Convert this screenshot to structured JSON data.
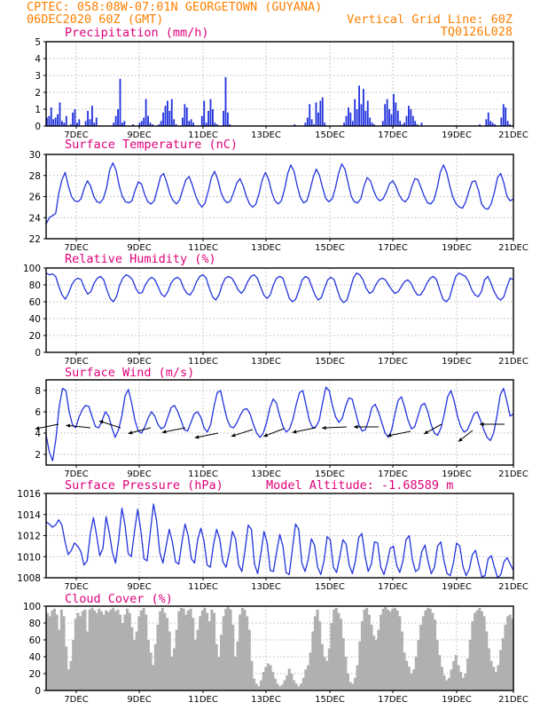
{
  "header": {
    "line1": "CPTEC:   058:08W-07:01N   GEORGETOWN (GUYANA)",
    "line2_left": "06DEC2020 60Z (GMT)",
    "line2_right": "Vertical Grid Line: 60Z",
    "line3_right": "TQ0126L028"
  },
  "colors": {
    "header": "#ff7f00",
    "title": "#e0007a",
    "series": "#2233dd",
    "cloud_fill": "#b0b0b0",
    "grid": "#b8b8b8"
  },
  "x_axis": {
    "tick_labels": [
      "7DEC",
      "9DEC",
      "11DEC",
      "13DEC",
      "15DEC",
      "17DEC",
      "19DEC",
      "21DEC"
    ]
  },
  "chart_data": [
    {
      "id": "precip",
      "type": "bar",
      "title": "Precipitation (mm/h)",
      "ylim": [
        0,
        5
      ],
      "yticks": [
        0,
        1,
        2,
        3,
        4,
        5
      ],
      "grid": true,
      "values": [
        0.5,
        0.6,
        1.1,
        0.4,
        0.5,
        0.7,
        1.4,
        0.3,
        0.2,
        0.6,
        0,
        0.1,
        0.8,
        1.0,
        0.2,
        0.4,
        0,
        0,
        0.3,
        0.9,
        0.4,
        1.2,
        0.2,
        0.5,
        0,
        0,
        0,
        0,
        0,
        0,
        0,
        0.2,
        0.6,
        1.0,
        2.8,
        0.2,
        0.3,
        0,
        0,
        0,
        0.1,
        0,
        0,
        0.2,
        0.3,
        0.5,
        1.6,
        0.6,
        0.2,
        0.1,
        0,
        0,
        0.1,
        0.3,
        0.8,
        1.2,
        1.5,
        0.9,
        1.6,
        0.4,
        0.1,
        0,
        0,
        0.5,
        1.3,
        1.1,
        0.3,
        0.4,
        0.2,
        0,
        0,
        0,
        0.6,
        1.5,
        0.2,
        0.9,
        1.6,
        1.0,
        0.2,
        0.1,
        0,
        0,
        0.9,
        2.9,
        0.8,
        0.1,
        0,
        0,
        0,
        0,
        0,
        0,
        0,
        0,
        0,
        0,
        0,
        0,
        0,
        0,
        0,
        0,
        0,
        0,
        0,
        0,
        0,
        0,
        0,
        0,
        0,
        0,
        0,
        0,
        0,
        0.1,
        0,
        0,
        0,
        0,
        0.2,
        0.5,
        1.3,
        0.4,
        0.1,
        1.4,
        0.8,
        1.5,
        1.7,
        0.2,
        0,
        0,
        0,
        0,
        0,
        0,
        0,
        0,
        0.2,
        0.6,
        1.1,
        0.8,
        0.3,
        1.6,
        1.0,
        2.4,
        1.3,
        2.2,
        0.9,
        1.5,
        0.5,
        0.2,
        0.1,
        0,
        0,
        0,
        0.3,
        1.3,
        1.6,
        1.0,
        0.7,
        1.9,
        1.4,
        0.9,
        0.3,
        0.1,
        0.2,
        0.6,
        1.2,
        1.0,
        0.6,
        0.3,
        0.1,
        0,
        0.2,
        0,
        0,
        0,
        0,
        0,
        0,
        0,
        0,
        0,
        0,
        0,
        0,
        0,
        0,
        0,
        0,
        0,
        0,
        0,
        0,
        0,
        0,
        0,
        0,
        0,
        0,
        0.1,
        0,
        0,
        0.4,
        0.8,
        0.3,
        0.2,
        0.1,
        0,
        0,
        0.5,
        1.3,
        1.1,
        0.3,
        0.1,
        0
      ]
    },
    {
      "id": "temp",
      "type": "line",
      "title": "Surface Temperature (nC)",
      "ylim": [
        22,
        30
      ],
      "yticks": [
        22,
        24,
        26,
        28,
        30
      ],
      "grid": true,
      "values": [
        23.4,
        24.0,
        24.2,
        24.4,
        26.3,
        27.6,
        28.3,
        27.0,
        26.0,
        25.6,
        25.5,
        25.8,
        26.8,
        27.5,
        27.0,
        26.0,
        25.5,
        25.4,
        25.8,
        26.8,
        28.5,
        29.2,
        28.5,
        27.0,
        26.0,
        25.5,
        25.4,
        25.6,
        26.6,
        27.4,
        27.2,
        26.2,
        25.5,
        25.3,
        25.6,
        26.7,
        27.9,
        28.2,
        27.3,
        26.2,
        25.6,
        25.3,
        25.7,
        26.7,
        27.6,
        27.9,
        27.1,
        26.1,
        25.4,
        25.0,
        25.4,
        26.5,
        27.8,
        28.4,
        27.6,
        26.4,
        25.7,
        25.4,
        25.6,
        26.4,
        27.3,
        27.7,
        27.0,
        26.0,
        25.3,
        25.0,
        25.3,
        26.3,
        27.6,
        28.3,
        27.6,
        26.4,
        25.6,
        25.3,
        25.6,
        26.7,
        28.2,
        29.0,
        28.4,
        27.0,
        25.9,
        25.4,
        25.6,
        26.6,
        27.8,
        28.6,
        28.0,
        26.8,
        25.8,
        25.5,
        25.8,
        26.8,
        28.2,
        29.1,
        28.6,
        27.3,
        26.0,
        25.5,
        25.4,
        25.8,
        27.0,
        27.8,
        27.5,
        26.6,
        25.9,
        25.6,
        25.8,
        26.4,
        27.2,
        27.5,
        27.0,
        26.2,
        25.7,
        25.5,
        25.9,
        26.9,
        27.7,
        27.6,
        26.8,
        26.0,
        25.4,
        25.3,
        25.7,
        26.8,
        28.3,
        29.0,
        28.3,
        27.0,
        25.9,
        25.3,
        25.0,
        24.9,
        25.5,
        26.5,
        27.4,
        27.5,
        26.6,
        25.3,
        24.9,
        24.8,
        25.3,
        26.4,
        27.8,
        28.2,
        27.3,
        26.0,
        25.6,
        25.8
      ]
    },
    {
      "id": "rh",
      "type": "line",
      "title": "Relative Humidity (%)",
      "ylim": [
        0,
        100
      ],
      "yticks": [
        0,
        20,
        40,
        60,
        80,
        100
      ],
      "grid": true,
      "values": [
        94,
        92,
        93,
        90,
        78,
        68,
        63,
        70,
        80,
        86,
        88,
        86,
        76,
        69,
        72,
        82,
        88,
        90,
        86,
        74,
        64,
        60,
        66,
        80,
        88,
        92,
        90,
        86,
        76,
        70,
        71,
        80,
        86,
        89,
        86,
        78,
        69,
        66,
        72,
        82,
        87,
        89,
        86,
        76,
        70,
        68,
        74,
        84,
        90,
        92,
        88,
        76,
        66,
        62,
        68,
        80,
        88,
        90,
        88,
        82,
        74,
        70,
        75,
        84,
        90,
        92,
        88,
        78,
        68,
        64,
        68,
        80,
        88,
        90,
        88,
        76,
        64,
        60,
        63,
        74,
        86,
        90,
        88,
        78,
        68,
        62,
        65,
        76,
        86,
        89,
        86,
        74,
        63,
        59,
        62,
        75,
        88,
        94,
        92,
        86,
        76,
        70,
        72,
        80,
        86,
        88,
        86,
        80,
        74,
        70,
        72,
        78,
        84,
        86,
        82,
        74,
        68,
        68,
        74,
        82,
        88,
        90,
        86,
        74,
        63,
        60,
        64,
        78,
        90,
        94,
        92,
        90,
        84,
        74,
        68,
        66,
        72,
        86,
        90,
        82,
        72,
        65,
        62,
        66,
        78,
        88,
        86
      ]
    },
    {
      "id": "wind",
      "type": "line",
      "title": "Surface Wind (m/s)",
      "ylim": [
        1,
        9
      ],
      "yticks": [
        2,
        4,
        6,
        8
      ],
      "grid": true,
      "values": [
        3.8,
        2.2,
        1.4,
        3.5,
        6.5,
        8.2,
        8.0,
        6.0,
        4.8,
        4.5,
        5.5,
        6.2,
        6.6,
        6.5,
        5.5,
        4.6,
        4.5,
        5.2,
        6.0,
        5.6,
        4.5,
        3.6,
        4.3,
        5.6,
        7.5,
        8.1,
        6.8,
        5.2,
        4.2,
        4.0,
        4.6,
        5.4,
        6.0,
        5.6,
        4.8,
        4.4,
        4.6,
        5.5,
        6.4,
        6.6,
        6.0,
        5.2,
        4.3,
        4.2,
        5.0,
        5.8,
        6.0,
        5.5,
        4.5,
        4.1,
        4.8,
        6.5,
        7.8,
        8.0,
        6.6,
        5.3,
        4.6,
        4.5,
        5.0,
        5.7,
        6.2,
        6.3,
        5.8,
        4.8,
        4.0,
        3.6,
        4.0,
        5.0,
        6.4,
        7.2,
        6.8,
        5.6,
        4.6,
        4.1,
        4.4,
        5.3,
        6.7,
        7.8,
        8.0,
        6.6,
        5.2,
        4.5,
        4.6,
        5.2,
        6.8,
        8.3,
        8.0,
        6.6,
        5.5,
        5.0,
        5.4,
        6.5,
        7.3,
        7.2,
        6.0,
        4.8,
        4.2,
        4.3,
        5.2,
        6.4,
        6.7,
        6.0,
        5.0,
        4.0,
        3.6,
        4.3,
        5.8,
        7.1,
        7.4,
        6.4,
        5.2,
        4.4,
        4.6,
        5.6,
        6.6,
        6.8,
        6.0,
        4.8,
        4.0,
        3.8,
        4.5,
        5.8,
        7.4,
        8.0,
        7.0,
        5.6,
        4.6,
        4.1,
        4.3,
        5.0,
        5.8,
        6.0,
        5.2,
        4.3,
        3.6,
        3.3,
        4.0,
        5.6,
        7.6,
        8.2,
        7.0,
        5.6,
        5.8
      ]
    },
    {
      "id": "pres",
      "type": "line",
      "title": "Surface Pressure (hPa)",
      "annotation": "Model Altitude: -1.68589 m",
      "ylim": [
        1008,
        1016
      ],
      "yticks": [
        1008,
        1010,
        1012,
        1014,
        1016
      ],
      "grid": true,
      "values": [
        1013.3,
        1013.1,
        1012.8,
        1013.0,
        1013.5,
        1013.0,
        1011.4,
        1010.2,
        1010.6,
        1011.3,
        1011.0,
        1010.5,
        1009.2,
        1009.6,
        1012.2,
        1013.7,
        1012.0,
        1010.1,
        1010.8,
        1013.8,
        1012.3,
        1010.4,
        1009.4,
        1011.6,
        1014.6,
        1013.0,
        1010.3,
        1010.0,
        1012.4,
        1014.5,
        1012.5,
        1009.8,
        1009.6,
        1012.3,
        1015.0,
        1013.4,
        1010.4,
        1009.4,
        1011.0,
        1012.6,
        1011.4,
        1009.5,
        1009.3,
        1011.3,
        1013.1,
        1012.0,
        1009.8,
        1009.4,
        1011.6,
        1012.7,
        1011.5,
        1009.2,
        1009.0,
        1011.1,
        1012.6,
        1011.7,
        1009.5,
        1009.0,
        1010.4,
        1012.4,
        1011.7,
        1009.2,
        1008.6,
        1010.6,
        1013.0,
        1012.6,
        1009.3,
        1008.4,
        1010.2,
        1012.4,
        1011.3,
        1008.7,
        1008.6,
        1010.4,
        1012.1,
        1011.0,
        1008.5,
        1008.3,
        1010.7,
        1013.1,
        1012.6,
        1009.4,
        1008.6,
        1009.7,
        1011.7,
        1011.1,
        1009.0,
        1008.3,
        1009.6,
        1011.9,
        1011.6,
        1009.0,
        1008.5,
        1010.0,
        1011.6,
        1011.2,
        1009.2,
        1008.4,
        1009.7,
        1011.8,
        1012.2,
        1010.1,
        1008.6,
        1009.3,
        1011.4,
        1011.3,
        1009.0,
        1008.3,
        1009.4,
        1010.8,
        1011.0,
        1009.2,
        1008.5,
        1009.6,
        1011.6,
        1012.0,
        1009.7,
        1008.6,
        1008.8,
        1010.5,
        1011.1,
        1009.5,
        1008.4,
        1009.0,
        1011.0,
        1011.4,
        1009.6,
        1008.4,
        1008.2,
        1009.4,
        1011.3,
        1011.0,
        1009.1,
        1008.2,
        1008.8,
        1010.2,
        1010.6,
        1009.3,
        1008.1,
        1008.2,
        1009.8,
        1010.1,
        1009.0,
        1008.0,
        1008.3,
        1009.5,
        1009.9,
        1009.3,
        1008.7
      ]
    },
    {
      "id": "cloud",
      "type": "area",
      "title": "Cloud Cover (%)",
      "ylim": [
        0,
        100
      ],
      "yticks": [
        0,
        20,
        40,
        60,
        80,
        100
      ],
      "grid": true,
      "values": [
        92,
        88,
        95,
        97,
        90,
        72,
        96,
        88,
        52,
        25,
        35,
        60,
        85,
        92,
        88,
        94,
        96,
        70,
        96,
        98,
        95,
        92,
        97,
        94,
        90,
        95,
        93,
        96,
        98,
        94,
        96,
        90,
        80,
        90,
        97,
        92,
        75,
        60,
        70,
        88,
        95,
        98,
        90,
        60,
        45,
        30,
        55,
        78,
        94,
        98,
        92,
        86,
        70,
        40,
        50,
        72,
        94,
        98,
        97,
        90,
        95,
        97,
        86,
        60,
        72,
        88,
        95,
        98,
        92,
        82,
        96,
        92,
        55,
        40,
        66,
        88,
        97,
        99,
        96,
        78,
        40,
        58,
        90,
        98,
        96,
        88,
        72,
        35,
        14,
        8,
        5,
        12,
        22,
        28,
        32,
        30,
        22,
        14,
        8,
        5,
        7,
        12,
        18,
        26,
        20,
        12,
        8,
        5,
        8,
        15,
        25,
        30,
        45,
        70,
        88,
        96,
        82,
        55,
        40,
        35,
        50,
        80,
        96,
        98,
        92,
        85,
        62,
        40,
        20,
        10,
        8,
        15,
        30,
        58,
        82,
        96,
        98,
        90,
        78,
        65,
        60,
        72,
        90,
        97,
        99,
        96,
        94,
        97,
        98,
        95,
        88,
        70,
        45,
        35,
        28,
        20,
        25,
        40,
        60,
        78,
        88,
        95,
        98,
        97,
        92,
        84,
        60,
        42,
        28,
        18,
        12,
        15,
        25,
        35,
        42,
        30,
        22,
        15,
        20,
        38,
        60,
        82,
        92,
        95,
        98,
        94,
        88,
        70,
        50,
        35,
        28,
        22,
        30,
        48,
        62,
        78,
        88,
        90,
        85
      ]
    }
  ]
}
